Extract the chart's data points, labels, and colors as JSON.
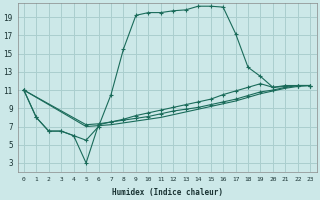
{
  "xlabel": "Humidex (Indice chaleur)",
  "bg_color": "#cce8e8",
  "grid_color": "#aacece",
  "line_color": "#1a6b5a",
  "xlim": [
    -0.5,
    23.5
  ],
  "ylim": [
    2,
    20.5
  ],
  "xticks": [
    0,
    1,
    2,
    3,
    4,
    5,
    6,
    7,
    8,
    9,
    10,
    11,
    12,
    13,
    14,
    15,
    16,
    17,
    18,
    19,
    20,
    21,
    22,
    23
  ],
  "yticks": [
    3,
    5,
    7,
    9,
    11,
    13,
    15,
    17,
    19
  ],
  "line1_x": [
    0,
    1,
    2,
    3,
    4,
    5,
    6,
    7,
    8,
    9,
    10,
    11,
    12,
    13,
    14,
    15,
    16,
    17,
    18,
    19,
    20,
    21,
    22,
    23
  ],
  "line1_y": [
    11,
    8,
    6.5,
    6.5,
    6.0,
    5.5,
    7.0,
    10.5,
    15.5,
    19.2,
    19.5,
    19.5,
    19.7,
    19.8,
    20.2,
    20.2,
    20.1,
    17.2,
    13.5,
    12.5,
    11.3,
    11.5,
    11.5,
    11.5
  ],
  "line2_x": [
    0,
    1,
    2,
    3,
    4,
    5,
    6,
    7,
    8,
    9,
    10,
    11,
    12,
    13,
    14,
    15,
    16,
    17,
    18,
    19,
    20,
    21,
    22,
    23
  ],
  "line2_y": [
    11,
    8.0,
    6.5,
    6.5,
    6.0,
    3.0,
    7.2,
    7.5,
    7.8,
    8.2,
    8.5,
    8.8,
    9.1,
    9.4,
    9.7,
    10.0,
    10.5,
    10.9,
    11.3,
    11.7,
    11.3,
    11.4,
    11.5,
    11.5
  ],
  "line3_x": [
    0,
    5,
    6,
    7,
    8,
    9,
    10,
    11,
    12,
    13,
    14,
    15,
    16,
    17,
    18,
    19,
    20,
    21,
    22,
    23
  ],
  "line3_y": [
    11,
    7.2,
    7.3,
    7.5,
    7.7,
    7.9,
    8.1,
    8.4,
    8.7,
    8.9,
    9.1,
    9.4,
    9.7,
    10.0,
    10.4,
    10.8,
    11.0,
    11.3,
    11.5,
    11.5
  ],
  "line4_x": [
    0,
    5,
    6,
    7,
    8,
    9,
    10,
    11,
    12,
    13,
    14,
    15,
    16,
    17,
    18,
    19,
    20,
    21,
    22,
    23
  ],
  "line4_y": [
    11,
    7.0,
    7.1,
    7.2,
    7.4,
    7.6,
    7.8,
    8.0,
    8.3,
    8.6,
    8.9,
    9.2,
    9.5,
    9.8,
    10.2,
    10.6,
    10.9,
    11.2,
    11.4,
    11.5
  ]
}
